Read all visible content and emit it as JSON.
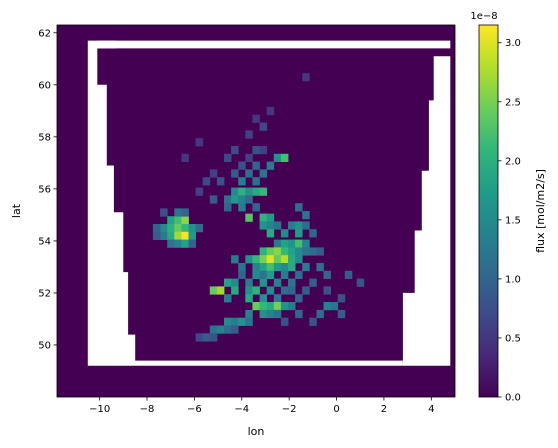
{
  "chart_data": {
    "type": "heatmap",
    "xlabel": "lon",
    "ylabel": "lat",
    "xlim": [
      -11.8,
      5.0
    ],
    "ylim": [
      48.0,
      62.3
    ],
    "xticks": [
      -10,
      -8,
      -6,
      -4,
      -2,
      0,
      2,
      4
    ],
    "xtick_labels": [
      "−10",
      "−8",
      "−6",
      "−4",
      "−2",
      "0",
      "2",
      "4"
    ],
    "yticks": [
      50,
      52,
      54,
      56,
      58,
      60,
      62
    ],
    "ytick_labels": [
      "50",
      "52",
      "54",
      "56",
      "58",
      "60",
      "62"
    ],
    "colorbar": {
      "label": "flux [mol/m2/s]",
      "cmap": "viridis",
      "vmin": 0.0,
      "vmax": 3.15,
      "multiplier": "1e−8",
      "ticks": [
        0.0,
        0.5,
        1.0,
        1.5,
        2.0,
        2.5,
        3.0
      ],
      "tick_labels": [
        "0.0",
        "0.5",
        "1.0",
        "1.5",
        "2.0",
        "2.5",
        "3.0"
      ]
    },
    "background_value": 0.0,
    "missing_regions_lonlat": [
      [
        [
          -10.5,
          49.2
        ],
        [
          -10.5,
          61.7
        ],
        [
          -9.3,
          61.7
        ],
        [
          -9.3,
          61.4
        ],
        [
          -10.1,
          61.4
        ],
        [
          -10.1,
          60.0
        ],
        [
          -9.7,
          60.0
        ],
        [
          -9.7,
          56.9
        ],
        [
          -9.4,
          56.9
        ],
        [
          -9.4,
          55.1
        ],
        [
          -9.0,
          55.1
        ],
        [
          -9.0,
          52.8
        ],
        [
          -8.8,
          52.8
        ],
        [
          -8.8,
          50.4
        ],
        [
          -8.5,
          50.4
        ],
        [
          -8.5,
          49.4
        ],
        [
          2.8,
          49.4
        ],
        [
          2.8,
          49.2
        ]
      ],
      [
        [
          2.8,
          49.2
        ],
        [
          2.8,
          52.0
        ],
        [
          3.3,
          52.0
        ],
        [
          3.3,
          54.4
        ],
        [
          3.6,
          54.4
        ],
        [
          3.6,
          56.7
        ],
        [
          3.9,
          56.7
        ],
        [
          3.9,
          59.4
        ],
        [
          4.1,
          59.4
        ],
        [
          4.1,
          61.1
        ],
        [
          4.8,
          61.1
        ],
        [
          4.8,
          49.2
        ]
      ],
      [
        [
          -10.1,
          61.7
        ],
        [
          -10.1,
          61.4
        ],
        [
          4.8,
          61.4
        ],
        [
          4.8,
          61.7
        ]
      ]
    ],
    "cells": [
      {
        "lon": -7.0,
        "lat": 54.8,
        "v": 1.8
      },
      {
        "lon": -6.7,
        "lat": 54.8,
        "v": 2.2
      },
      {
        "lon": -6.4,
        "lat": 54.8,
        "v": 2.6
      },
      {
        "lon": -7.3,
        "lat": 54.5,
        "v": 1.5
      },
      {
        "lon": -7.0,
        "lat": 54.5,
        "v": 2.0
      },
      {
        "lon": -6.7,
        "lat": 54.5,
        "v": 2.4
      },
      {
        "lon": -6.4,
        "lat": 54.5,
        "v": 2.1
      },
      {
        "lon": -6.1,
        "lat": 54.5,
        "v": 1.6
      },
      {
        "lon": -7.3,
        "lat": 54.2,
        "v": 1.3
      },
      {
        "lon": -7.0,
        "lat": 54.2,
        "v": 1.9
      },
      {
        "lon": -6.7,
        "lat": 54.2,
        "v": 2.7
      },
      {
        "lon": -6.4,
        "lat": 54.2,
        "v": 3.1
      },
      {
        "lon": -6.1,
        "lat": 54.2,
        "v": 1.7
      },
      {
        "lon": -7.6,
        "lat": 54.2,
        "v": 0.9
      },
      {
        "lon": -5.8,
        "lat": 54.5,
        "v": 1.1
      },
      {
        "lon": -7.6,
        "lat": 54.5,
        "v": 1.0
      },
      {
        "lon": -7.0,
        "lat": 53.9,
        "v": 1.2
      },
      {
        "lon": -6.7,
        "lat": 53.9,
        "v": 1.4
      },
      {
        "lon": -6.4,
        "lat": 53.9,
        "v": 1.8
      },
      {
        "lon": -6.1,
        "lat": 53.9,
        "v": 1.0
      },
      {
        "lon": -7.3,
        "lat": 55.1,
        "v": 0.8
      },
      {
        "lon": -6.7,
        "lat": 55.1,
        "v": 1.2
      },
      {
        "lon": -6.4,
        "lat": 55.1,
        "v": 1.0
      },
      {
        "lon": -4.3,
        "lat": 55.9,
        "v": 1.5
      },
      {
        "lon": -4.0,
        "lat": 55.9,
        "v": 2.0
      },
      {
        "lon": -3.7,
        "lat": 55.9,
        "v": 1.6
      },
      {
        "lon": -3.4,
        "lat": 55.9,
        "v": 1.9
      },
      {
        "lon": -3.1,
        "lat": 55.9,
        "v": 2.1
      },
      {
        "lon": -4.6,
        "lat": 55.6,
        "v": 1.2
      },
      {
        "lon": -4.3,
        "lat": 55.6,
        "v": 1.7
      },
      {
        "lon": -4.0,
        "lat": 55.6,
        "v": 1.4
      },
      {
        "lon": -3.7,
        "lat": 55.6,
        "v": 1.1
      },
      {
        "lon": -4.6,
        "lat": 55.3,
        "v": 1.0
      },
      {
        "lon": -4.0,
        "lat": 55.3,
        "v": 1.3
      },
      {
        "lon": -3.4,
        "lat": 55.3,
        "v": 1.0
      },
      {
        "lon": -3.7,
        "lat": 54.9,
        "v": 2.3
      },
      {
        "lon": -3.1,
        "lat": 54.9,
        "v": 2.0
      },
      {
        "lon": -2.8,
        "lat": 54.9,
        "v": 1.7
      },
      {
        "lon": -3.1,
        "lat": 54.6,
        "v": 1.6
      },
      {
        "lon": -2.8,
        "lat": 54.6,
        "v": 1.4
      },
      {
        "lon": -2.5,
        "lat": 54.6,
        "v": 1.2
      },
      {
        "lon": -2.8,
        "lat": 54.3,
        "v": 1.9
      },
      {
        "lon": -2.2,
        "lat": 54.3,
        "v": 1.5
      },
      {
        "lon": -1.6,
        "lat": 54.3,
        "v": 1.7
      },
      {
        "lon": -1.9,
        "lat": 54.6,
        "v": 1.3
      },
      {
        "lon": -1.6,
        "lat": 54.6,
        "v": 1.6
      },
      {
        "lon": -1.3,
        "lat": 54.6,
        "v": 1.1
      },
      {
        "lon": -2.5,
        "lat": 53.9,
        "v": 1.3
      },
      {
        "lon": -2.2,
        "lat": 53.9,
        "v": 1.8
      },
      {
        "lon": -1.9,
        "lat": 53.9,
        "v": 1.6
      },
      {
        "lon": -1.6,
        "lat": 53.9,
        "v": 2.2
      },
      {
        "lon": -1.3,
        "lat": 53.9,
        "v": 1.4
      },
      {
        "lon": -3.1,
        "lat": 53.6,
        "v": 2.0
      },
      {
        "lon": -2.8,
        "lat": 53.6,
        "v": 2.4
      },
      {
        "lon": -2.5,
        "lat": 53.6,
        "v": 2.6
      },
      {
        "lon": -2.2,
        "lat": 53.6,
        "v": 2.1
      },
      {
        "lon": -1.9,
        "lat": 53.6,
        "v": 1.8
      },
      {
        "lon": -1.6,
        "lat": 53.6,
        "v": 1.5
      },
      {
        "lon": -1.3,
        "lat": 53.6,
        "v": 1.2
      },
      {
        "lon": -4.3,
        "lat": 53.3,
        "v": 1.3
      },
      {
        "lon": -3.7,
        "lat": 53.3,
        "v": 1.6
      },
      {
        "lon": -3.4,
        "lat": 53.3,
        "v": 2.1
      },
      {
        "lon": -3.1,
        "lat": 53.3,
        "v": 2.5
      },
      {
        "lon": -2.8,
        "lat": 53.3,
        "v": 3.0
      },
      {
        "lon": -2.5,
        "lat": 53.3,
        "v": 2.4
      },
      {
        "lon": -2.2,
        "lat": 53.3,
        "v": 2.8
      },
      {
        "lon": -1.9,
        "lat": 53.3,
        "v": 1.9
      },
      {
        "lon": -1.6,
        "lat": 53.3,
        "v": 1.5
      },
      {
        "lon": -4.0,
        "lat": 53.0,
        "v": 1.2
      },
      {
        "lon": -3.4,
        "lat": 53.0,
        "v": 1.4
      },
      {
        "lon": -3.1,
        "lat": 53.0,
        "v": 1.8
      },
      {
        "lon": -2.8,
        "lat": 53.0,
        "v": 2.2
      },
      {
        "lon": -2.5,
        "lat": 53.0,
        "v": 1.7
      },
      {
        "lon": -2.2,
        "lat": 53.0,
        "v": 1.5
      },
      {
        "lon": -1.9,
        "lat": 53.0,
        "v": 1.9
      },
      {
        "lon": -1.3,
        "lat": 53.0,
        "v": 1.3
      },
      {
        "lon": -0.7,
        "lat": 53.0,
        "v": 1.1
      },
      {
        "lon": -4.0,
        "lat": 52.7,
        "v": 1.0
      },
      {
        "lon": -3.4,
        "lat": 52.7,
        "v": 1.5
      },
      {
        "lon": -3.1,
        "lat": 52.7,
        "v": 1.2
      },
      {
        "lon": -2.8,
        "lat": 52.7,
        "v": 1.7
      },
      {
        "lon": -2.2,
        "lat": 52.7,
        "v": 1.3
      },
      {
        "lon": -1.6,
        "lat": 52.7,
        "v": 1.1
      },
      {
        "lon": -0.4,
        "lat": 52.7,
        "v": 1.0
      },
      {
        "lon": 0.5,
        "lat": 52.7,
        "v": 0.9
      },
      {
        "lon": -4.6,
        "lat": 52.4,
        "v": 1.8
      },
      {
        "lon": -4.3,
        "lat": 52.4,
        "v": 1.5
      },
      {
        "lon": -3.7,
        "lat": 52.4,
        "v": 1.3
      },
      {
        "lon": -3.1,
        "lat": 52.4,
        "v": 1.6
      },
      {
        "lon": -2.5,
        "lat": 52.4,
        "v": 1.4
      },
      {
        "lon": -1.9,
        "lat": 52.4,
        "v": 1.2
      },
      {
        "lon": 1.0,
        "lat": 52.4,
        "v": 0.8
      },
      {
        "lon": -5.2,
        "lat": 52.1,
        "v": 2.4
      },
      {
        "lon": -4.9,
        "lat": 52.1,
        "v": 2.7
      },
      {
        "lon": -4.3,
        "lat": 52.1,
        "v": 1.9
      },
      {
        "lon": -3.7,
        "lat": 52.1,
        "v": 1.6
      },
      {
        "lon": -3.4,
        "lat": 52.1,
        "v": 2.0
      },
      {
        "lon": -2.8,
        "lat": 52.1,
        "v": 1.5
      },
      {
        "lon": -2.2,
        "lat": 52.1,
        "v": 1.1
      },
      {
        "lon": -4.6,
        "lat": 51.8,
        "v": 1.3
      },
      {
        "lon": -3.7,
        "lat": 51.8,
        "v": 1.9
      },
      {
        "lon": -3.1,
        "lat": 51.8,
        "v": 1.6
      },
      {
        "lon": -2.5,
        "lat": 51.8,
        "v": 1.3
      },
      {
        "lon": -1.6,
        "lat": 51.8,
        "v": 1.0
      },
      {
        "lon": -3.4,
        "lat": 51.5,
        "v": 2.4
      },
      {
        "lon": -3.1,
        "lat": 51.5,
        "v": 2.1
      },
      {
        "lon": -2.8,
        "lat": 51.5,
        "v": 1.9
      },
      {
        "lon": -2.5,
        "lat": 51.5,
        "v": 2.5
      },
      {
        "lon": -2.2,
        "lat": 51.5,
        "v": 1.6
      },
      {
        "lon": -1.9,
        "lat": 51.5,
        "v": 1.3
      },
      {
        "lon": -0.4,
        "lat": 51.5,
        "v": 1.4
      },
      {
        "lon": -0.1,
        "lat": 51.5,
        "v": 1.2
      },
      {
        "lon": -3.7,
        "lat": 51.2,
        "v": 1.4
      },
      {
        "lon": -3.1,
        "lat": 51.2,
        "v": 1.6
      },
      {
        "lon": -2.8,
        "lat": 51.2,
        "v": 1.4
      },
      {
        "lon": -2.5,
        "lat": 51.2,
        "v": 1.2
      },
      {
        "lon": -1.6,
        "lat": 51.2,
        "v": 1.0
      },
      {
        "lon": -0.7,
        "lat": 51.2,
        "v": 1.1
      },
      {
        "lon": 0.2,
        "lat": 51.2,
        "v": 0.9
      },
      {
        "lon": -4.6,
        "lat": 50.9,
        "v": 1.5
      },
      {
        "lon": -4.3,
        "lat": 50.9,
        "v": 1.3
      },
      {
        "lon": -4.0,
        "lat": 50.9,
        "v": 1.6
      },
      {
        "lon": -3.7,
        "lat": 50.9,
        "v": 1.2
      },
      {
        "lon": -2.2,
        "lat": 50.9,
        "v": 0.8
      },
      {
        "lon": -1.0,
        "lat": 50.9,
        "v": 0.8
      },
      {
        "lon": -5.2,
        "lat": 50.6,
        "v": 1.2
      },
      {
        "lon": -4.9,
        "lat": 50.6,
        "v": 1.4
      },
      {
        "lon": -4.6,
        "lat": 50.6,
        "v": 1.1
      },
      {
        "lon": -4.3,
        "lat": 50.6,
        "v": 0.9
      },
      {
        "lon": -5.8,
        "lat": 50.3,
        "v": 0.7
      },
      {
        "lon": -5.5,
        "lat": 50.3,
        "v": 0.9
      },
      {
        "lon": -5.2,
        "lat": 50.3,
        "v": 0.8
      },
      {
        "lon": -4.3,
        "lat": 57.5,
        "v": 0.7
      },
      {
        "lon": -3.4,
        "lat": 57.5,
        "v": 0.8
      },
      {
        "lon": -3.1,
        "lat": 57.5,
        "v": 0.6
      },
      {
        "lon": -4.6,
        "lat": 57.2,
        "v": 0.7
      },
      {
        "lon": -3.7,
        "lat": 57.2,
        "v": 0.6
      },
      {
        "lon": -2.5,
        "lat": 57.2,
        "v": 1.6
      },
      {
        "lon": -2.2,
        "lat": 57.2,
        "v": 2.2
      },
      {
        "lon": -4.0,
        "lat": 56.9,
        "v": 0.8
      },
      {
        "lon": -3.4,
        "lat": 56.9,
        "v": 1.0
      },
      {
        "lon": -2.8,
        "lat": 56.9,
        "v": 1.3
      },
      {
        "lon": -5.2,
        "lat": 56.6,
        "v": 0.6
      },
      {
        "lon": -4.3,
        "lat": 56.6,
        "v": 0.9
      },
      {
        "lon": -3.7,
        "lat": 56.6,
        "v": 1.1
      },
      {
        "lon": -3.1,
        "lat": 56.6,
        "v": 1.2
      },
      {
        "lon": -5.5,
        "lat": 56.3,
        "v": 0.7
      },
      {
        "lon": -4.9,
        "lat": 56.3,
        "v": 0.8
      },
      {
        "lon": -4.0,
        "lat": 56.3,
        "v": 1.3
      },
      {
        "lon": -3.4,
        "lat": 56.3,
        "v": 1.1
      },
      {
        "lon": -5.2,
        "lat": 55.6,
        "v": 0.9
      },
      {
        "lon": -5.8,
        "lat": 55.9,
        "v": 0.6
      },
      {
        "lon": -3.7,
        "lat": 58.1,
        "v": 0.6
      },
      {
        "lon": -3.1,
        "lat": 58.4,
        "v": 0.7
      },
      {
        "lon": -3.4,
        "lat": 58.7,
        "v": 0.5
      },
      {
        "lon": -2.8,
        "lat": 59.0,
        "v": 0.5
      },
      {
        "lon": -1.3,
        "lat": 60.3,
        "v": 0.5
      },
      {
        "lon": -5.8,
        "lat": 57.8,
        "v": 0.5
      },
      {
        "lon": -6.4,
        "lat": 57.2,
        "v": 0.5
      },
      {
        "lon": -1.9,
        "lat": 52.1,
        "v": 1.0
      },
      {
        "lon": -1.3,
        "lat": 52.1,
        "v": 0.9
      },
      {
        "lon": -1.0,
        "lat": 52.4,
        "v": 0.9
      },
      {
        "lon": -0.4,
        "lat": 52.1,
        "v": 0.8
      },
      {
        "lon": 0.2,
        "lat": 51.8,
        "v": 0.8
      },
      {
        "lon": -1.0,
        "lat": 53.6,
        "v": 1.1
      },
      {
        "lon": -0.7,
        "lat": 53.6,
        "v": 0.9
      },
      {
        "lon": -1.0,
        "lat": 54.3,
        "v": 1.0
      },
      {
        "lon": -1.3,
        "lat": 55.0,
        "v": 1.2
      },
      {
        "lon": -1.6,
        "lat": 55.3,
        "v": 1.1
      }
    ]
  }
}
